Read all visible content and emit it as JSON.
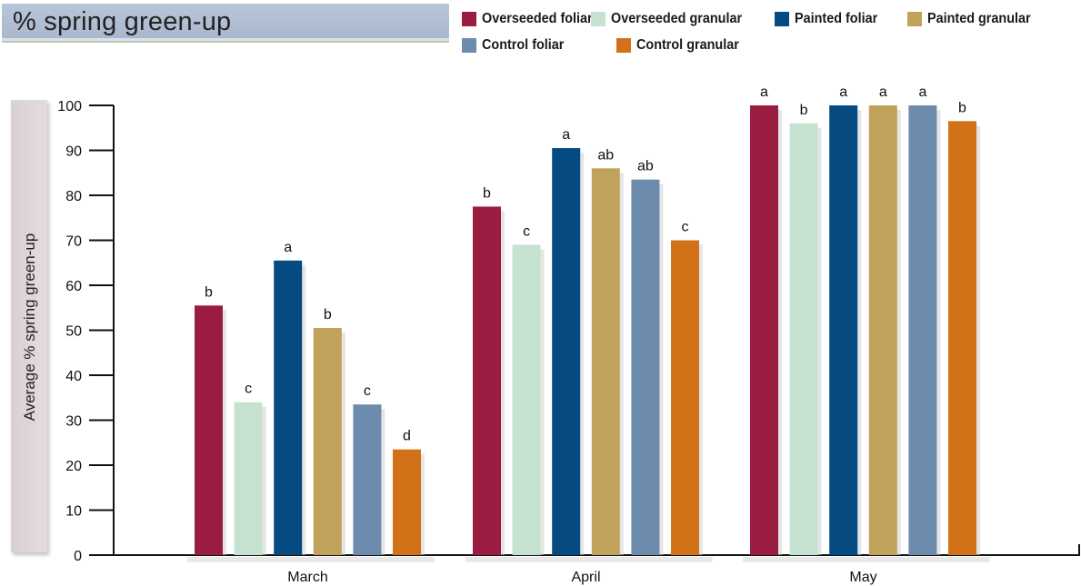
{
  "header": {
    "title": "% spring green-up"
  },
  "chart_data": {
    "type": "bar",
    "title": "% spring green-up",
    "xlabel": "",
    "ylabel": "Average % spring green-up",
    "ylim": [
      0,
      100
    ],
    "yticks": [
      0,
      10,
      20,
      30,
      40,
      50,
      60,
      70,
      80,
      90,
      100
    ],
    "grid": false,
    "legend_position": "top-right",
    "categories": [
      "March",
      "April",
      "May"
    ],
    "series": [
      {
        "name": "Overseeded foliar",
        "color": "#9a1c40",
        "values": [
          55.5,
          77.5,
          100
        ],
        "letters": [
          "b",
          "b",
          "a"
        ]
      },
      {
        "name": "Overseeded granular",
        "color": "#c5e2d0",
        "values": [
          34,
          69,
          96
        ],
        "letters": [
          "c",
          "c",
          "b"
        ]
      },
      {
        "name": "Painted foliar",
        "color": "#054a80",
        "values": [
          65.5,
          90.5,
          100
        ],
        "letters": [
          "a",
          "a",
          "a"
        ]
      },
      {
        "name": "Painted granular",
        "color": "#c0a25a",
        "values": [
          50.5,
          86,
          100
        ],
        "letters": [
          "b",
          "ab",
          "a"
        ]
      },
      {
        "name": "Control foliar",
        "color": "#6d8cad",
        "values": [
          33.5,
          83.5,
          100
        ],
        "letters": [
          "c",
          "ab",
          "a"
        ]
      },
      {
        "name": "Control granular",
        "color": "#d17219",
        "values": [
          23.5,
          70,
          96.5
        ],
        "letters": [
          "d",
          "c",
          "b"
        ]
      }
    ]
  }
}
